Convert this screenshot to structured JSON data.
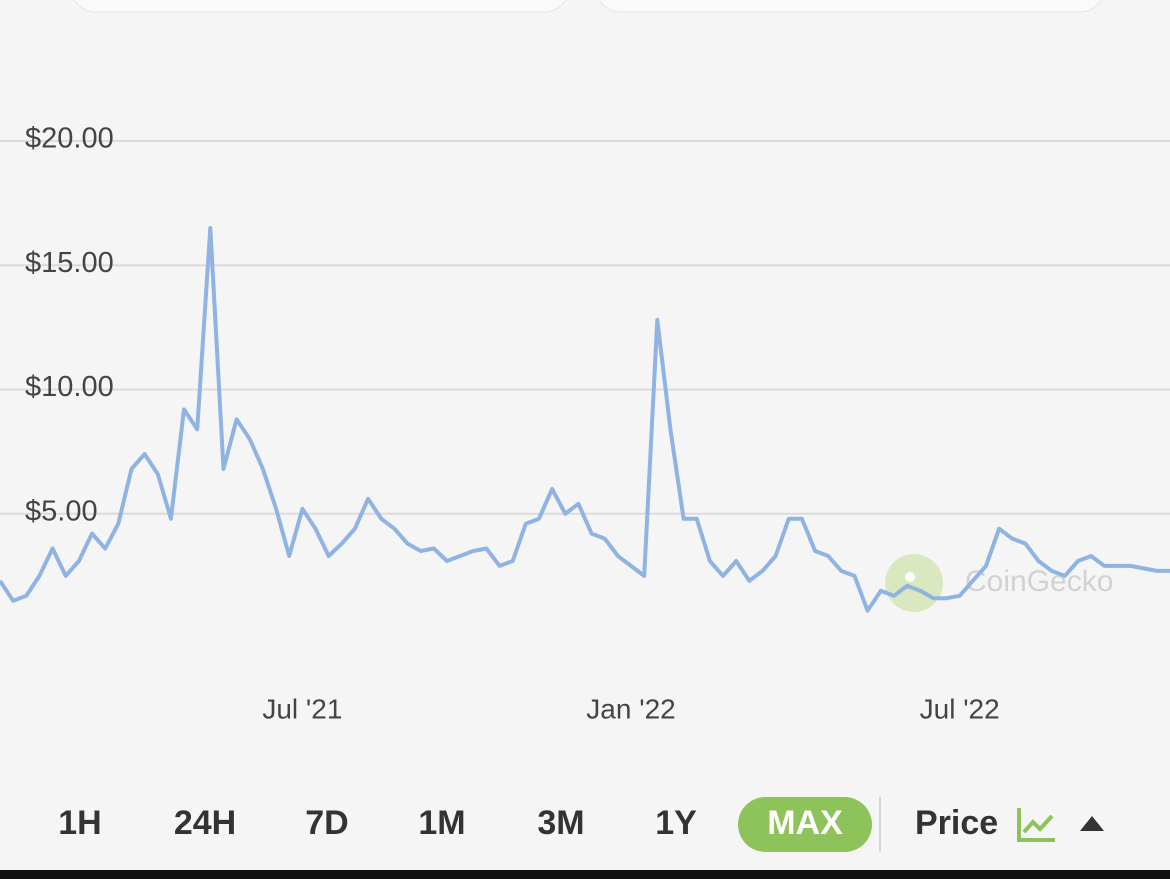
{
  "chart_data": {
    "type": "line",
    "categories": [
      null,
      null,
      null,
      null,
      null,
      null,
      null,
      null,
      null,
      null,
      null,
      null,
      null,
      null,
      null,
      null,
      null,
      null,
      null,
      null,
      null,
      null,
      null,
      "Jul '21",
      null,
      null,
      null,
      null,
      null,
      null,
      null,
      null,
      null,
      null,
      null,
      null,
      null,
      null,
      null,
      null,
      null,
      null,
      null,
      null,
      null,
      null,
      null,
      null,
      "Jan '22",
      null,
      null,
      null,
      null,
      null,
      null,
      null,
      null,
      null,
      null,
      null,
      null,
      null,
      null,
      null,
      null,
      null,
      null,
      null,
      null,
      null,
      null,
      null,
      null,
      "Jul '22",
      null,
      null,
      null,
      null,
      null,
      null,
      null,
      null,
      null,
      null,
      null,
      null,
      null,
      null,
      null,
      null
    ],
    "series": [
      {
        "name": "Price",
        "color": "#8fb3e3",
        "values": [
          2.3,
          1.5,
          1.7,
          2.5,
          3.6,
          2.5,
          3.1,
          4.2,
          3.6,
          4.6,
          6.8,
          7.4,
          6.6,
          4.8,
          9.2,
          8.4,
          16.5,
          6.8,
          8.8,
          8.0,
          6.8,
          5.2,
          3.3,
          5.2,
          4.4,
          3.3,
          3.8,
          4.4,
          5.6,
          4.8,
          4.4,
          3.8,
          3.5,
          3.6,
          3.1,
          3.3,
          3.5,
          3.6,
          2.9,
          3.1,
          4.6,
          4.8,
          6.0,
          5.0,
          5.4,
          4.2,
          4.0,
          3.3,
          2.9,
          2.5,
          12.8,
          8.4,
          4.8,
          4.8,
          3.1,
          2.5,
          3.1,
          2.3,
          2.7,
          3.3,
          4.8,
          4.8,
          3.5,
          3.3,
          2.7,
          2.5,
          1.1,
          1.9,
          1.7,
          2.1,
          1.9,
          1.6,
          1.6,
          1.7,
          2.3,
          2.9,
          4.4,
          4.0,
          3.8,
          3.1,
          2.7,
          2.5,
          3.1,
          3.3,
          2.9,
          2.9,
          2.9,
          2.8,
          2.7,
          2.7
        ]
      }
    ],
    "ylim": [
      0,
      20
    ],
    "yticks": [
      {
        "value": 5,
        "label": "$5.00"
      },
      {
        "value": 10,
        "label": "$10.00"
      },
      {
        "value": 15,
        "label": "$15.00"
      },
      {
        "value": 20,
        "label": "$20.00"
      }
    ],
    "grid": true,
    "watermark": "CoinGecko"
  },
  "range_buttons": [
    {
      "label": "1H"
    },
    {
      "label": "24H"
    },
    {
      "label": "7D"
    },
    {
      "label": "1M"
    },
    {
      "label": "3M"
    },
    {
      "label": "1Y"
    },
    {
      "label": "MAX",
      "selected": true
    }
  ],
  "mode_button": "Price"
}
